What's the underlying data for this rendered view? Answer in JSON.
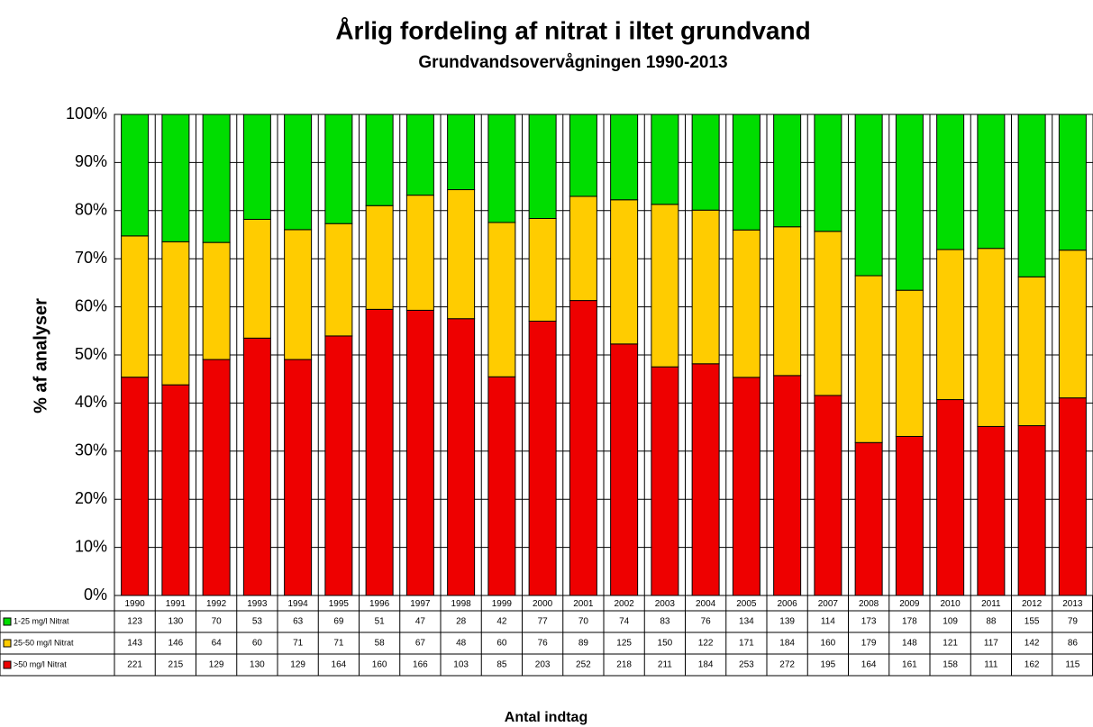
{
  "chart_data": {
    "type": "bar",
    "stacked": "percent",
    "title": "Årlig fordeling af nitrat i iltet grundvand",
    "subtitle": "Grundvandsovervågningen 1990-2013",
    "ylabel": "% af analyser",
    "xlabel": "Antal indtag",
    "categories": [
      "1990",
      "1991",
      "1992",
      "1993",
      "1994",
      "1995",
      "1996",
      "1997",
      "1998",
      "1999",
      "2000",
      "2001",
      "2002",
      "2003",
      "2004",
      "2005",
      "2006",
      "2007",
      "2008",
      "2009",
      "2010",
      "2011",
      "2012",
      "2013"
    ],
    "series": [
      {
        "name": "1-25 mg/l Nitrat",
        "color": "#00dd00",
        "values": [
          123,
          130,
          70,
          53,
          63,
          69,
          51,
          47,
          28,
          42,
          77,
          70,
          74,
          83,
          76,
          134,
          139,
          114,
          173,
          178,
          109,
          88,
          155,
          79
        ]
      },
      {
        "name": "25-50 mg/l Nitrat",
        "color": "#ffcc00",
        "values": [
          143,
          146,
          64,
          60,
          71,
          71,
          58,
          67,
          48,
          60,
          76,
          89,
          125,
          150,
          122,
          171,
          184,
          160,
          179,
          148,
          121,
          117,
          142,
          86
        ]
      },
      {
        "name": ">50 mg/l Nitrat",
        "color": "#ee0000",
        "values": [
          221,
          215,
          129,
          130,
          129,
          164,
          160,
          166,
          103,
          85,
          203,
          252,
          218,
          211,
          184,
          253,
          272,
          195,
          164,
          161,
          158,
          111,
          162,
          115
        ]
      }
    ],
    "ylim": [
      0,
      100
    ],
    "yticks": [
      {
        "value": 0,
        "label": "0%"
      },
      {
        "value": 10,
        "label": "10%"
      },
      {
        "value": 20,
        "label": "20%"
      },
      {
        "value": 30,
        "label": "30%"
      },
      {
        "value": 40,
        "label": "40%"
      },
      {
        "value": 50,
        "label": "50%"
      },
      {
        "value": 60,
        "label": "60%"
      },
      {
        "value": 70,
        "label": "70%"
      },
      {
        "value": 80,
        "label": "80%"
      },
      {
        "value": 90,
        "label": "90%"
      },
      {
        "value": 100,
        "label": "100%"
      }
    ],
    "grid": true
  }
}
